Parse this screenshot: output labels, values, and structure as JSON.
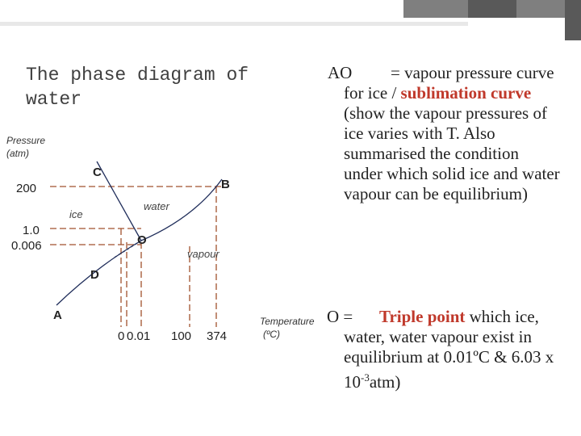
{
  "header": {
    "title": "The phase diagram of water"
  },
  "diagram": {
    "y_axis_label": [
      "Pressure",
      "(atm)"
    ],
    "y_ticks": [
      "200",
      "1.0",
      "0.006"
    ],
    "x_ticks": [
      "0",
      "0.01",
      "100",
      "374"
    ],
    "x_axis_label": [
      "Temperature",
      "(ºC)"
    ],
    "points": [
      "C",
      "B",
      "O",
      "D",
      "A"
    ],
    "regions": [
      "ice",
      "water",
      "vapour"
    ]
  },
  "notes": {
    "ao": {
      "term": "AO",
      "text_1": "= vapour pressure curve for ice /",
      "highlight": "sublimation curve",
      "text_2": "(show the vapour pressures of ice varies with T.",
      "text_3": "Also summarised the condition under which solid ice and water vapour can be equilibrium)"
    },
    "o": {
      "term": "O =",
      "highlight": "Triple point",
      "text_1": "which ice, water, water vapour exist in equilibrium at 0.01ºC & 6.03 x 10",
      "exponent": "-3",
      "text_2": "atm)"
    }
  }
}
